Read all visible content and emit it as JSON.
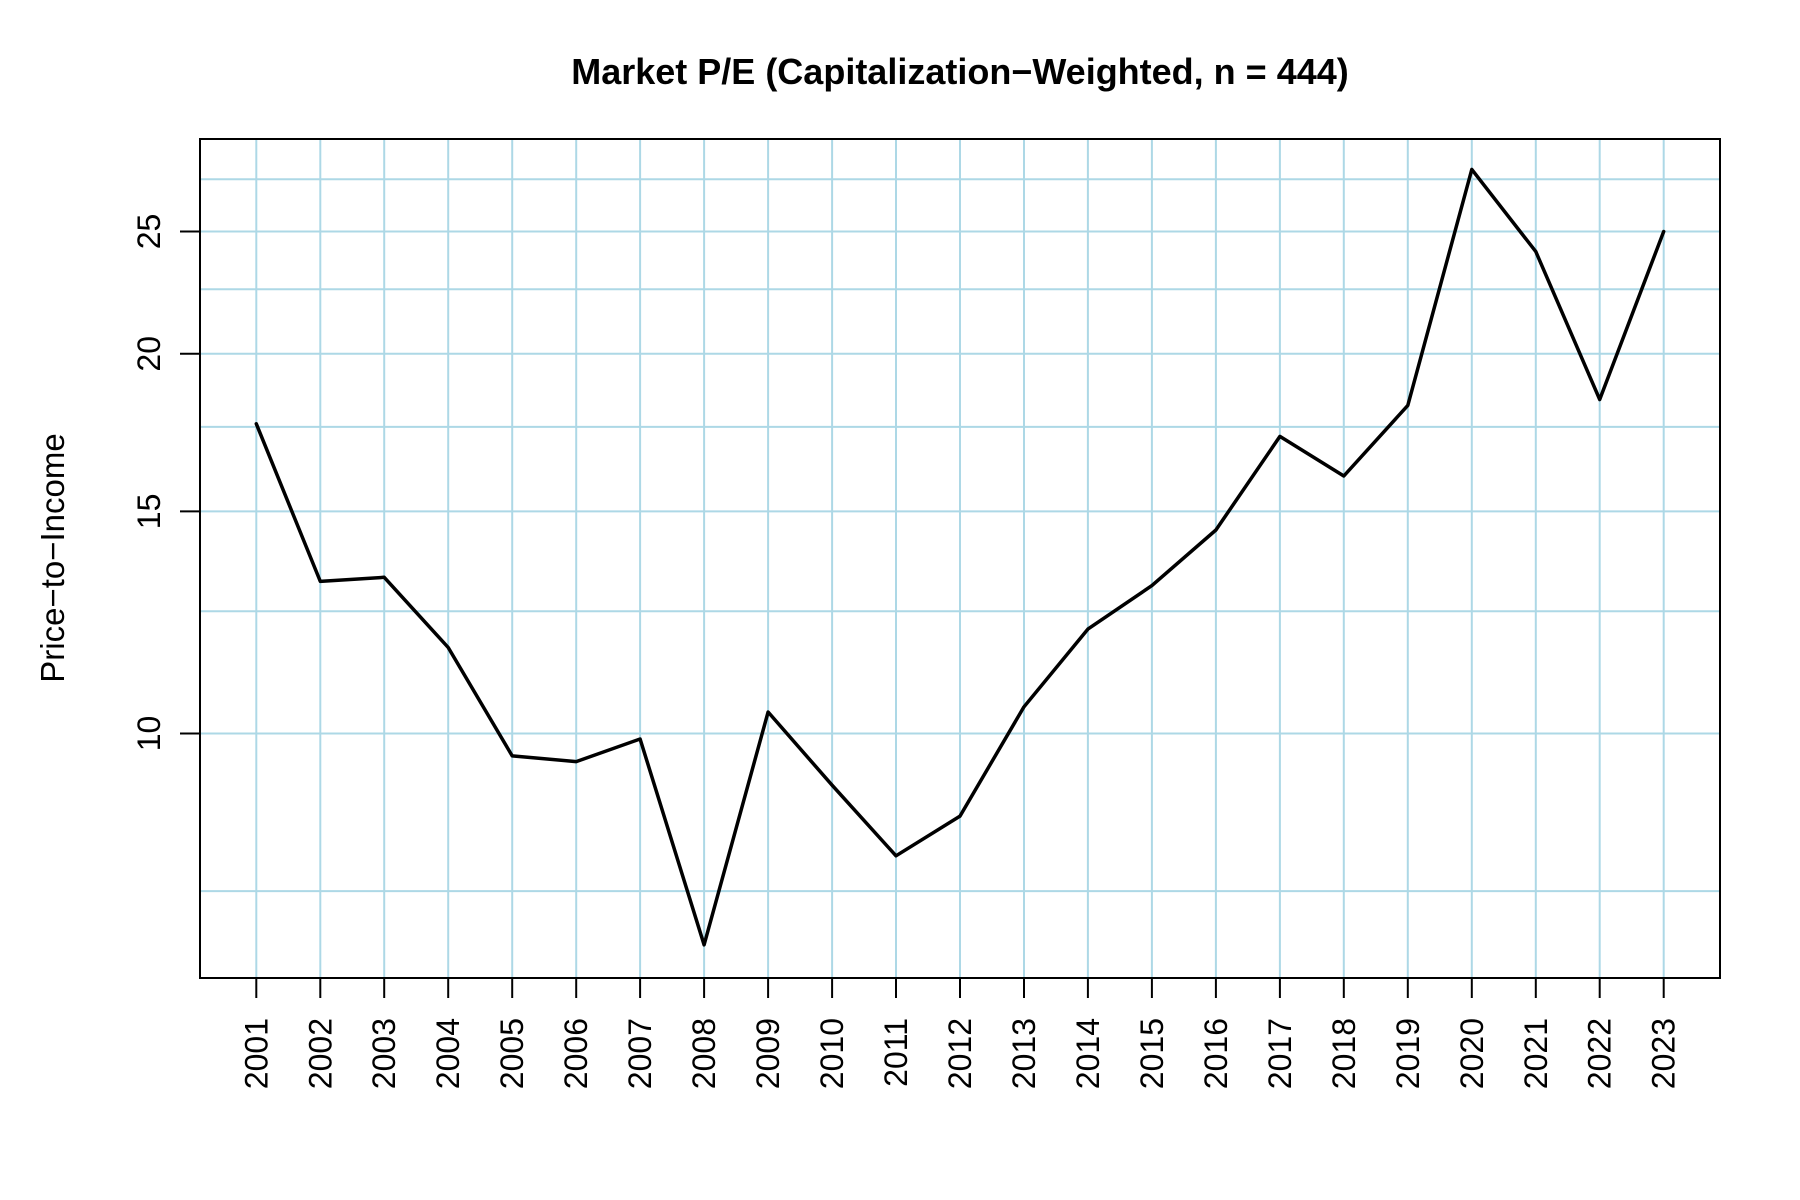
{
  "chart_data": {
    "type": "line",
    "title": "Market P/E (Capitalization−Weighted, n = 444)",
    "ylabel": "Price−to−Income",
    "xlabel": "",
    "x": [
      2001,
      2002,
      2003,
      2004,
      2005,
      2006,
      2007,
      2008,
      2009,
      2010,
      2011,
      2012,
      2013,
      2014,
      2015,
      2016,
      2017,
      2018,
      2019,
      2020,
      2021,
      2022,
      2023
    ],
    "values": [
      17.6,
      13.2,
      13.3,
      11.7,
      9.6,
      9.5,
      9.9,
      6.8,
      10.4,
      9.1,
      8.0,
      8.6,
      10.5,
      12.1,
      13.1,
      14.5,
      17.2,
      16.0,
      18.2,
      28.0,
      24.1,
      18.4,
      25.0
    ],
    "series_name": "Market P/E (capitalization-weighted)",
    "y_scale": "log",
    "ylim": [
      6.4,
      29.6
    ],
    "xlim": [
      2000.12,
      2023.88
    ],
    "y_ticks": [
      10,
      15,
      20,
      25
    ],
    "x_ticks": [
      2001,
      2002,
      2003,
      2004,
      2005,
      2006,
      2007,
      2008,
      2009,
      2010,
      2011,
      2012,
      2013,
      2014,
      2015,
      2016,
      2017,
      2018,
      2019,
      2020,
      2021,
      2022,
      2023
    ],
    "grid": {
      "on": true,
      "h_values": [
        7.5,
        10,
        12.5,
        15,
        17.5,
        20,
        22.5,
        25,
        27.5
      ],
      "color": "#ADD8E6"
    },
    "series_color": "#000000",
    "axis_color": "#000000",
    "background": "#FFFFFF",
    "legend": "none"
  }
}
